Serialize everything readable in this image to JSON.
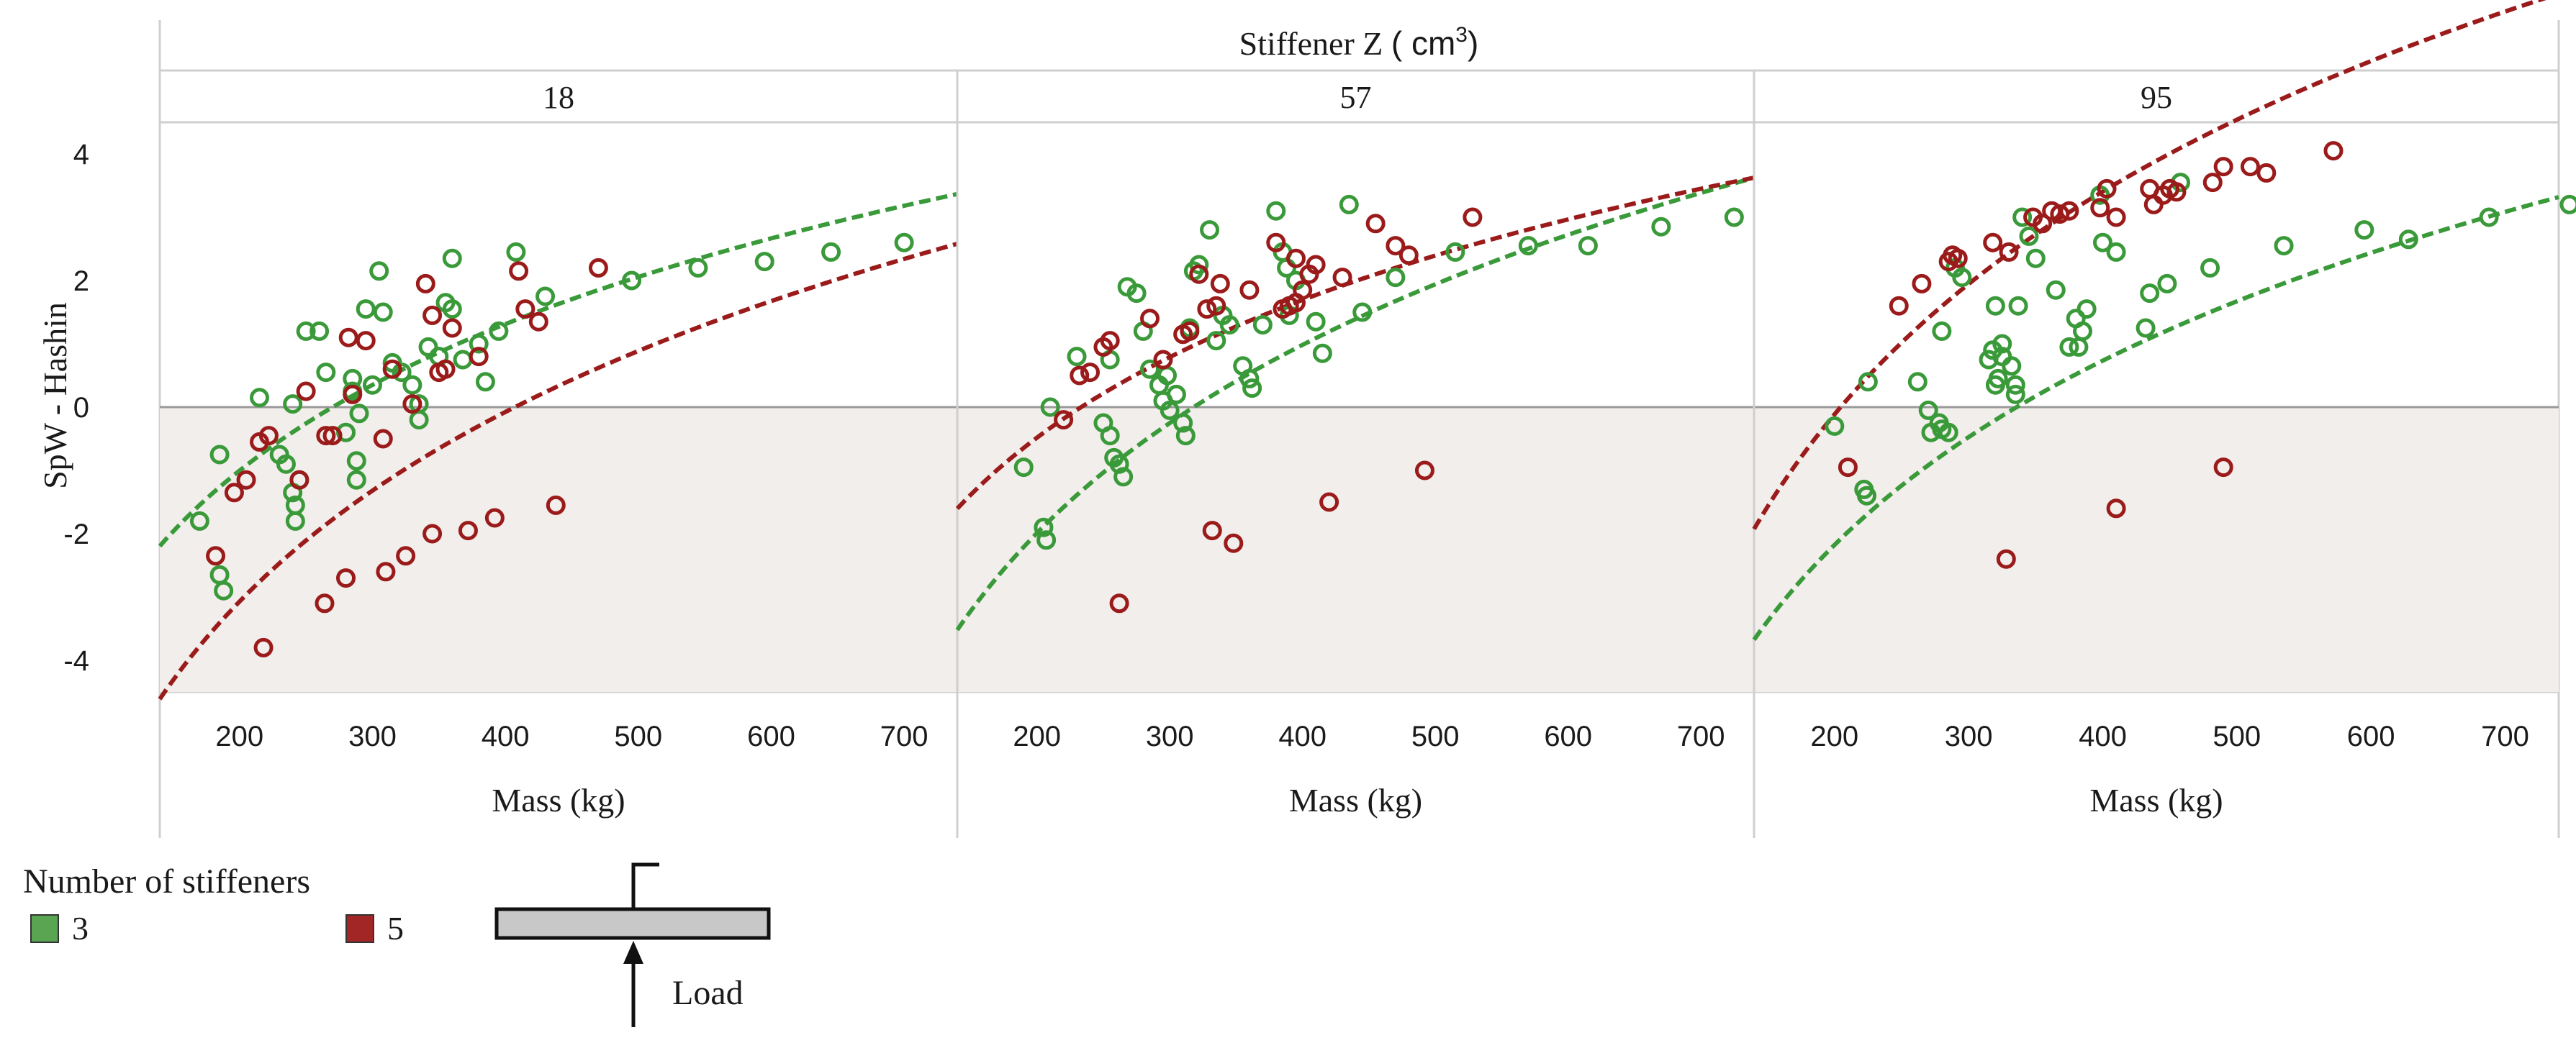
{
  "chart_data": {
    "type": "scatter",
    "super_title": "Stiffener Z",
    "super_title_unit": "( cm",
    "super_title_unit_sup": "3",
    "super_title_unit_close": ")",
    "ylabel": "SpW - Hashin",
    "xlabel": "Mass (kg)",
    "xlim": [
      140,
      740
    ],
    "ylim": [
      -4.5,
      4.5
    ],
    "x_ticks": [
      200,
      300,
      400,
      500,
      600,
      700
    ],
    "y_ticks": [
      4,
      2,
      0,
      -2,
      -4
    ],
    "shaded_region": {
      "from": -4.5,
      "to": 0
    },
    "colors": {
      "green": "#3a9a3a",
      "red": "#9b1b1b",
      "shade": "#f1eeeb",
      "grid": "#d8d8d8"
    },
    "legend": {
      "title": "Number of stiffeners",
      "items": [
        {
          "label": "3",
          "color": "#5aa552"
        },
        {
          "label": "5",
          "color": "#a32626"
        }
      ]
    },
    "inset": {
      "label": "Load"
    },
    "panels": [
      {
        "label": "18",
        "series": [
          {
            "name": "3",
            "color": "#3a9a3a",
            "points": [
              [
                170,
                -1.8
              ],
              [
                185,
                -0.75
              ],
              [
                185,
                -2.65
              ],
              [
                188,
                -2.9
              ],
              [
                215,
                0.15
              ],
              [
                230,
                -0.75
              ],
              [
                235,
                -0.9
              ],
              [
                240,
                0.05
              ],
              [
                240,
                -1.35
              ],
              [
                242,
                -1.55
              ],
              [
                242,
                -1.8
              ],
              [
                245,
                -1.15
              ],
              [
                250,
                1.2
              ],
              [
                260,
                1.2
              ],
              [
                265,
                0.55
              ],
              [
                280,
                -0.4
              ],
              [
                285,
                0.25
              ],
              [
                285,
                0.45
              ],
              [
                288,
                -0.85
              ],
              [
                288,
                -1.15
              ],
              [
                290,
                -0.1
              ],
              [
                295,
                1.55
              ],
              [
                300,
                0.35
              ],
              [
                305,
                2.15
              ],
              [
                308,
                1.5
              ],
              [
                315,
                0.7
              ],
              [
                322,
                0.55
              ],
              [
                330,
                0.35
              ],
              [
                335,
                0.05
              ],
              [
                335,
                -0.2
              ],
              [
                342,
                0.95
              ],
              [
                350,
                0.8
              ],
              [
                355,
                1.65
              ],
              [
                360,
                2.35
              ],
              [
                360,
                1.55
              ],
              [
                368,
                0.75
              ],
              [
                380,
                1.0
              ],
              [
                385,
                0.4
              ],
              [
                395,
                1.2
              ],
              [
                408,
                2.45
              ],
              [
                430,
                1.75
              ],
              [
                495,
                2.0
              ],
              [
                545,
                2.2
              ],
              [
                595,
                2.3
              ],
              [
                645,
                2.45
              ],
              [
                700,
                2.6
              ]
            ],
            "fit": {
              "a": -18.7,
              "b": 3.34
            }
          },
          {
            "name": "5",
            "color": "#9b1b1b",
            "points": [
              [
                182,
                -2.35
              ],
              [
                196,
                -1.35
              ],
              [
                205,
                -1.15
              ],
              [
                215,
                -0.55
              ],
              [
                218,
                -3.8
              ],
              [
                222,
                -0.45
              ],
              [
                245,
                -1.15
              ],
              [
                250,
                0.25
              ],
              [
                264,
                -3.1
              ],
              [
                265,
                -0.45
              ],
              [
                270,
                -0.45
              ],
              [
                280,
                -2.7
              ],
              [
                282,
                1.1
              ],
              [
                285,
                0.2
              ],
              [
                295,
                1.05
              ],
              [
                308,
                -0.5
              ],
              [
                310,
                -2.6
              ],
              [
                315,
                0.6
              ],
              [
                325,
                -2.35
              ],
              [
                330,
                0.05
              ],
              [
                340,
                1.95
              ],
              [
                345,
                1.45
              ],
              [
                345,
                -2.0
              ],
              [
                350,
                0.55
              ],
              [
                355,
                0.6
              ],
              [
                360,
                1.25
              ],
              [
                372,
                -1.95
              ],
              [
                380,
                0.8
              ],
              [
                392,
                -1.75
              ],
              [
                410,
                2.15
              ],
              [
                415,
                1.55
              ],
              [
                425,
                1.35
              ],
              [
                438,
                -1.55
              ],
              [
                470,
                2.2
              ]
            ],
            "fit": {
              "a": -25.96,
              "b": 4.32
            }
          }
        ]
      },
      {
        "label": "57",
        "series": [
          {
            "name": "3",
            "color": "#3a9a3a",
            "points": [
              [
                190,
                -0.95
              ],
              [
                205,
                -1.9
              ],
              [
                207,
                -2.1
              ],
              [
                210,
                0.0
              ],
              [
                230,
                0.8
              ],
              [
                250,
                -0.25
              ],
              [
                255,
                -0.45
              ],
              [
                255,
                0.75
              ],
              [
                258,
                -0.8
              ],
              [
                262,
                -0.9
              ],
              [
                265,
                -1.1
              ],
              [
                268,
                1.9
              ],
              [
                275,
                1.8
              ],
              [
                280,
                1.2
              ],
              [
                285,
                0.6
              ],
              [
                292,
                0.35
              ],
              [
                295,
                0.1
              ],
              [
                298,
                0.5
              ],
              [
                300,
                -0.05
              ],
              [
                305,
                0.2
              ],
              [
                310,
                -0.25
              ],
              [
                312,
                -0.45
              ],
              [
                315,
                1.25
              ],
              [
                318,
                2.15
              ],
              [
                322,
                2.25
              ],
              [
                330,
                2.8
              ],
              [
                335,
                1.05
              ],
              [
                340,
                1.45
              ],
              [
                345,
                1.3
              ],
              [
                355,
                0.65
              ],
              [
                360,
                0.45
              ],
              [
                362,
                0.3
              ],
              [
                370,
                1.3
              ],
              [
                380,
                3.1
              ],
              [
                385,
                2.45
              ],
              [
                388,
                2.2
              ],
              [
                390,
                1.45
              ],
              [
                395,
                2.0
              ],
              [
                410,
                1.35
              ],
              [
                415,
                0.85
              ],
              [
                435,
                3.2
              ],
              [
                445,
                1.5
              ],
              [
                470,
                2.05
              ],
              [
                515,
                2.45
              ],
              [
                570,
                2.55
              ],
              [
                615,
                2.55
              ],
              [
                670,
                2.85
              ],
              [
                725,
                3.0
              ]
            ],
            "fit": {
              "a": -24.72,
              "b": 4.29
            }
          },
          {
            "name": "5",
            "color": "#9b1b1b",
            "points": [
              [
                220,
                -0.2
              ],
              [
                232,
                0.5
              ],
              [
                240,
                0.55
              ],
              [
                250,
                0.95
              ],
              [
                255,
                1.05
              ],
              [
                262,
                -3.1
              ],
              [
                285,
                1.4
              ],
              [
                295,
                0.75
              ],
              [
                310,
                1.15
              ],
              [
                315,
                1.2
              ],
              [
                322,
                2.1
              ],
              [
                328,
                1.55
              ],
              [
                332,
                -1.95
              ],
              [
                335,
                1.6
              ],
              [
                338,
                1.95
              ],
              [
                348,
                -2.15
              ],
              [
                360,
                1.85
              ],
              [
                380,
                2.6
              ],
              [
                385,
                1.55
              ],
              [
                390,
                1.6
              ],
              [
                395,
                1.65
              ],
              [
                395,
                2.35
              ],
              [
                400,
                1.85
              ],
              [
                405,
                2.1
              ],
              [
                410,
                2.25
              ],
              [
                420,
                -1.5
              ],
              [
                430,
                2.05
              ],
              [
                455,
                2.9
              ],
              [
                470,
                2.55
              ],
              [
                480,
                2.4
              ],
              [
                492,
                -1.0
              ],
              [
                528,
                3.0
              ]
            ],
            "fit": {
              "a": -17.12,
              "b": 3.14
            }
          }
        ]
      },
      {
        "label": "95",
        "series": [
          {
            "name": "3",
            "color": "#3a9a3a",
            "points": [
              [
                200,
                -0.3
              ],
              [
                222,
                -1.3
              ],
              [
                224,
                -1.4
              ],
              [
                225,
                0.4
              ],
              [
                262,
                0.4
              ],
              [
                270,
                -0.05
              ],
              [
                272,
                -0.4
              ],
              [
                278,
                -0.25
              ],
              [
                280,
                -0.35
              ],
              [
                280,
                1.2
              ],
              [
                285,
                -0.4
              ],
              [
                290,
                2.2
              ],
              [
                295,
                2.05
              ],
              [
                315,
                0.75
              ],
              [
                318,
                0.9
              ],
              [
                320,
                0.35
              ],
              [
                320,
                1.6
              ],
              [
                322,
                0.45
              ],
              [
                325,
                0.8
              ],
              [
                325,
                1.0
              ],
              [
                332,
                0.65
              ],
              [
                335,
                0.35
              ],
              [
                335,
                0.2
              ],
              [
                337,
                1.6
              ],
              [
                340,
                3.0
              ],
              [
                345,
                2.7
              ],
              [
                350,
                2.35
              ],
              [
                365,
                1.85
              ],
              [
                375,
                0.95
              ],
              [
                380,
                1.4
              ],
              [
                382,
                0.95
              ],
              [
                385,
                1.2
              ],
              [
                388,
                1.55
              ],
              [
                398,
                3.35
              ],
              [
                400,
                2.6
              ],
              [
                410,
                2.45
              ],
              [
                432,
                1.25
              ],
              [
                435,
                1.8
              ],
              [
                448,
                1.95
              ],
              [
                458,
                3.55
              ],
              [
                480,
                2.2
              ],
              [
                535,
                2.55
              ],
              [
                595,
                2.8
              ],
              [
                628,
                2.65
              ],
              [
                688,
                3.0
              ],
              [
                748,
                3.2
              ]
            ],
            "fit": {
              "a": -24.43,
              "b": 4.2
            }
          },
          {
            "name": "5",
            "color": "#9b1b1b",
            "points": [
              [
                210,
                -0.95
              ],
              [
                248,
                1.6
              ],
              [
                265,
                1.95
              ],
              [
                285,
                2.3
              ],
              [
                288,
                2.4
              ],
              [
                292,
                2.35
              ],
              [
                318,
                2.6
              ],
              [
                328,
                -2.4
              ],
              [
                330,
                2.45
              ],
              [
                348,
                3.0
              ],
              [
                355,
                2.9
              ],
              [
                362,
                3.1
              ],
              [
                368,
                3.05
              ],
              [
                375,
                3.1
              ],
              [
                398,
                3.15
              ],
              [
                403,
                3.45
              ],
              [
                410,
                3.0
              ],
              [
                410,
                -1.6
              ],
              [
                435,
                3.45
              ],
              [
                438,
                3.2
              ],
              [
                445,
                3.35
              ],
              [
                450,
                3.45
              ],
              [
                455,
                3.4
              ],
              [
                482,
                3.55
              ],
              [
                490,
                3.8
              ],
              [
                490,
                -0.95
              ],
              [
                510,
                3.8
              ],
              [
                522,
                3.7
              ],
              [
                572,
                4.05
              ]
            ],
            "fit": {
              "a": -27.03,
              "b": 5.08
            }
          }
        ]
      }
    ]
  }
}
